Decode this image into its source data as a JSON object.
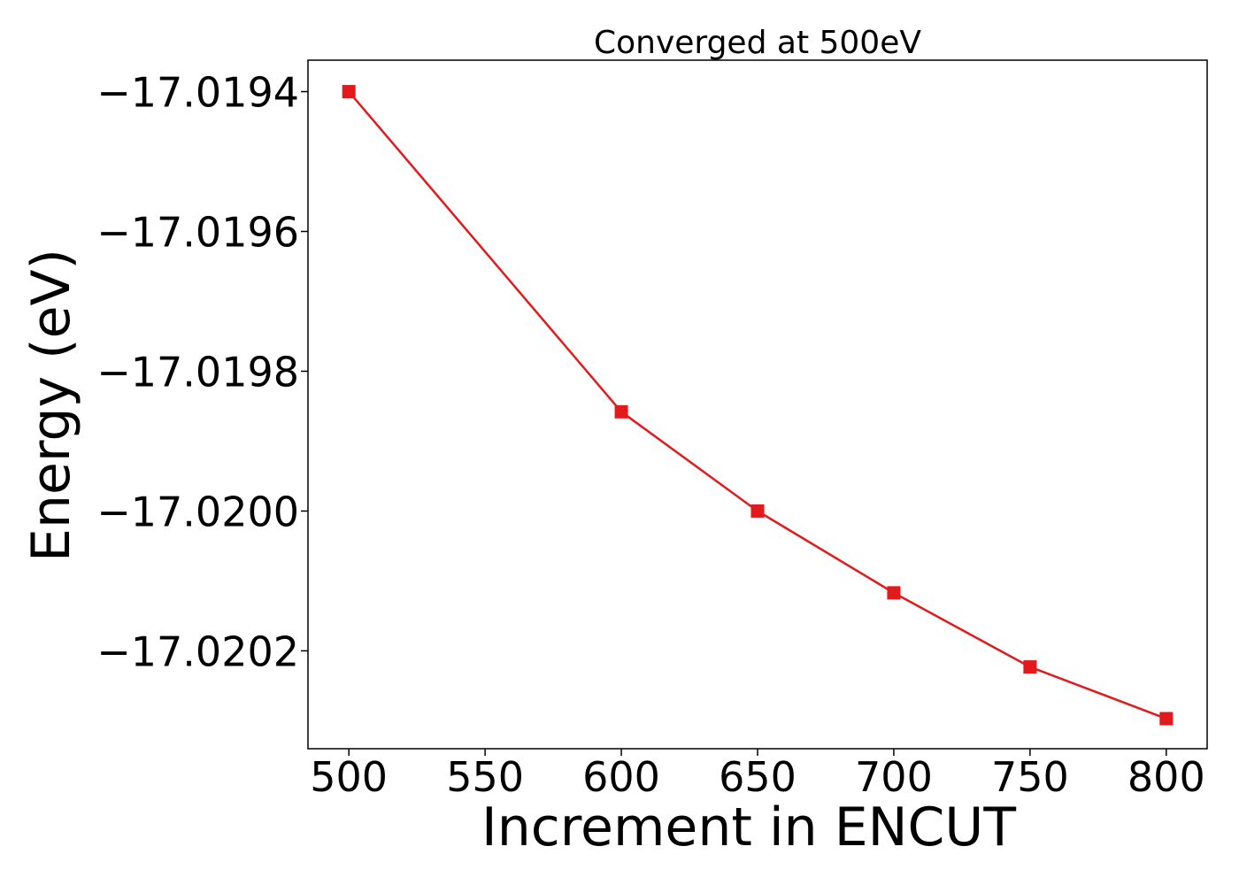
{
  "chart_data": {
    "type": "line",
    "title": "Converged at 500eV",
    "xlabel": "Increment in ENCUT",
    "ylabel": "Energy (eV)",
    "x": [
      500,
      600,
      650,
      700,
      750,
      800
    ],
    "series": [
      {
        "values": [
          -17.0194,
          -17.019858,
          -17.02,
          -17.020117,
          -17.020223,
          -17.020297
        ],
        "color": "#e31a1c",
        "marker": "square"
      }
    ],
    "xlim": [
      485,
      815
    ],
    "ylim": [
      -17.02034,
      -17.019355
    ],
    "xticks": [
      500,
      550,
      600,
      650,
      700,
      750,
      800
    ],
    "xtick_labels": [
      "500",
      "550",
      "600",
      "650",
      "700",
      "750",
      "800"
    ],
    "yticks": [
      -17.0194,
      -17.0196,
      -17.0198,
      -17.02,
      -17.0202
    ],
    "ytick_labels": [
      "−17.0194",
      "−17.0196",
      "−17.0198",
      "−17.0200",
      "−17.0202"
    ],
    "grid": false,
    "legend": "none"
  }
}
